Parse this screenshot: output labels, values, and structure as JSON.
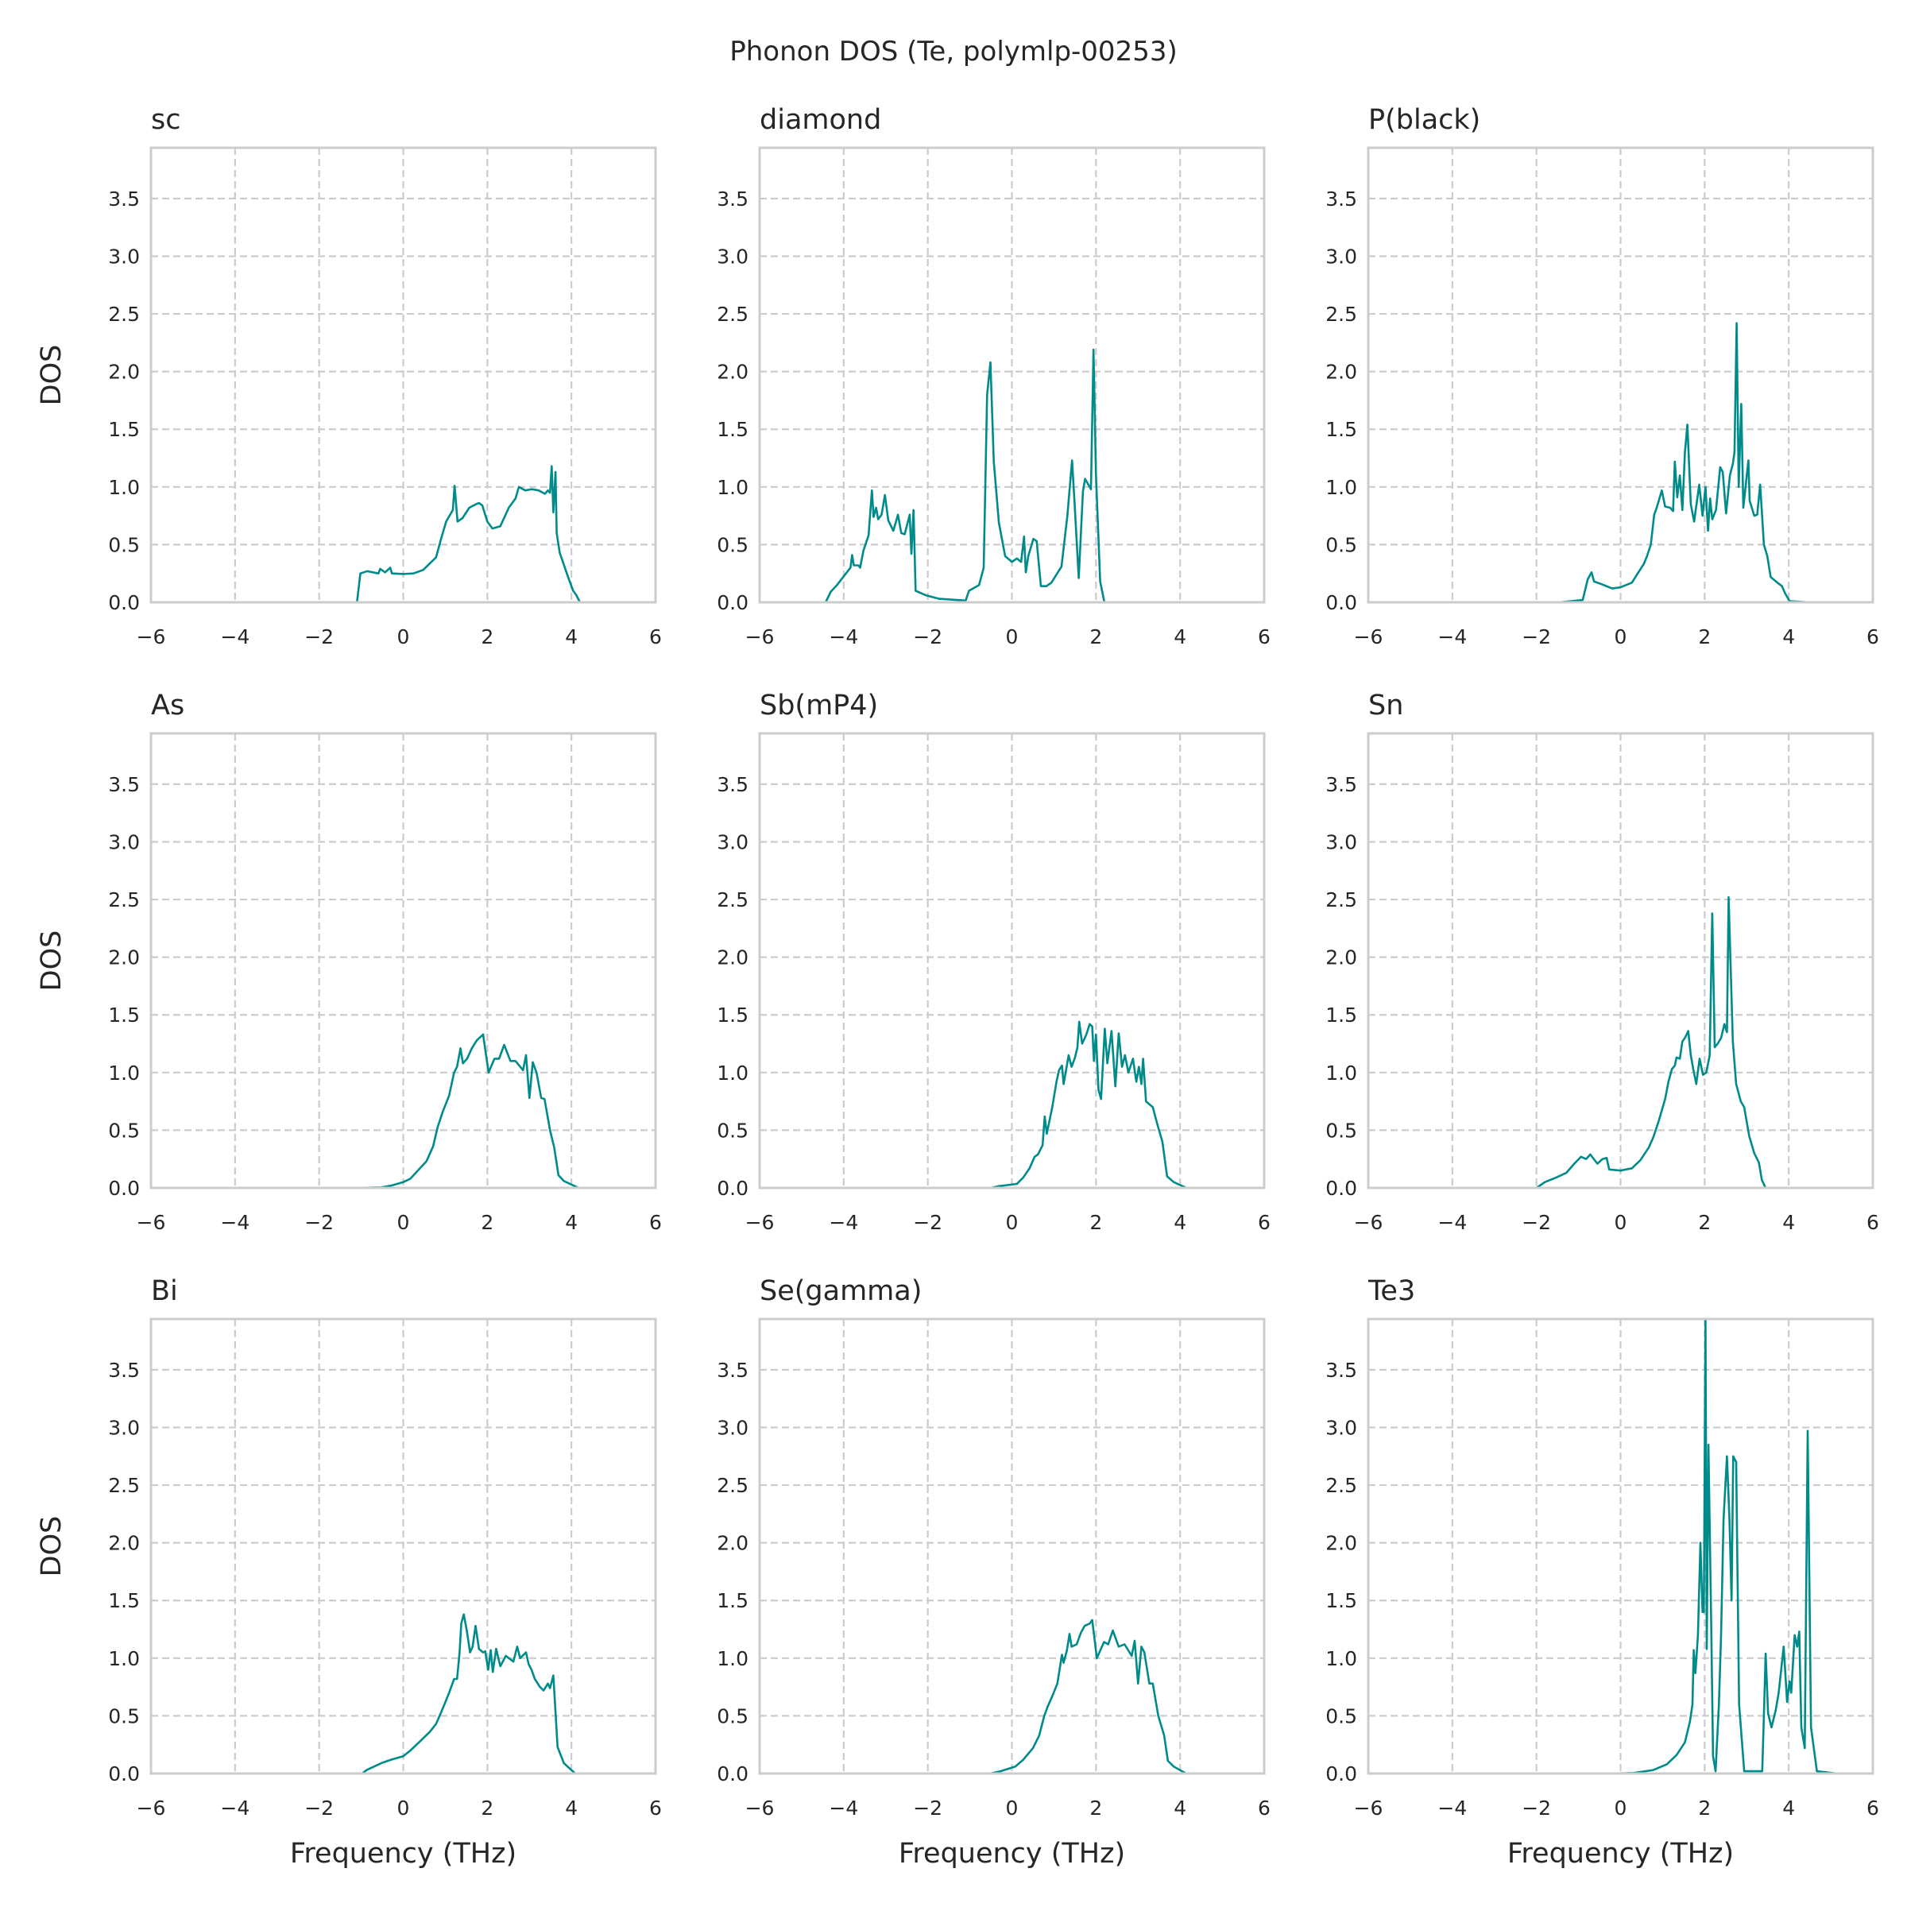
{
  "chart_data": {
    "type": "line",
    "title": "Phonon DOS (Te, polymlp-00253)",
    "xlabel": "Frequency (THz)",
    "ylabel": "DOS",
    "xlim": [
      -6,
      6
    ],
    "ylim": [
      0,
      3.94
    ],
    "xticks": [
      "−6",
      "−4",
      "−2",
      "0",
      "2",
      "4",
      "6"
    ],
    "xtick_values": [
      -6,
      -4,
      -2,
      0,
      2,
      4,
      6
    ],
    "yticks": [
      "0.0",
      "0.5",
      "1.0",
      "1.5",
      "2.0",
      "2.5",
      "3.0",
      "3.5"
    ],
    "ytick_values": [
      0,
      0.5,
      1.0,
      1.5,
      2.0,
      2.5,
      3.0,
      3.5
    ],
    "grid": true,
    "line_color": "#008b8b",
    "layout": "3x3 grid",
    "panels": [
      {
        "name": "sc",
        "x": [
          -1.65,
          -1.1,
          -1.02,
          -0.86,
          -0.59,
          -0.55,
          -0.43,
          -0.31,
          -0.27,
          0,
          0.24,
          0.47,
          0.78,
          0.9,
          1.02,
          1.18,
          1.22,
          1.29,
          1.41,
          1.57,
          1.73,
          1.8,
          1.88,
          2.0,
          2.12,
          2.31,
          2.51,
          2.67,
          2.75,
          2.9,
          3.06,
          3.22,
          3.37,
          3.44,
          3.49,
          3.53,
          3.57,
          3.62,
          3.65,
          3.72,
          3.92,
          4.04,
          4.12,
          4.2,
          4.71
        ],
        "y": [
          0,
          0,
          0.25,
          0.27,
          0.25,
          0.29,
          0.26,
          0.3,
          0.25,
          0.245,
          0.25,
          0.28,
          0.39,
          0.55,
          0.7,
          0.8,
          1.01,
          0.7,
          0.73,
          0.82,
          0.85,
          0.86,
          0.84,
          0.7,
          0.64,
          0.66,
          0.82,
          0.9,
          1.0,
          0.97,
          0.98,
          0.97,
          0.94,
          0.97,
          0.95,
          1.18,
          0.78,
          1.13,
          0.6,
          0.43,
          0.22,
          0.1,
          0.06,
          0,
          0
        ]
      },
      {
        "name": "diamond",
        "x": [
          -5.06,
          -4.43,
          -4.31,
          -4.16,
          -3.84,
          -3.8,
          -3.76,
          -3.65,
          -3.61,
          -3.53,
          -3.41,
          -3.33,
          -3.29,
          -3.23,
          -3.18,
          -3.1,
          -3.02,
          -2.94,
          -2.82,
          -2.71,
          -2.63,
          -2.55,
          -2.43,
          -2.39,
          -2.34,
          -2.29,
          -2.04,
          -1.73,
          -1.1,
          -1.02,
          -0.78,
          -0.67,
          -0.59,
          -0.51,
          -0.43,
          -0.31,
          -0.16,
          0,
          0.12,
          0.22,
          0.29,
          0.33,
          0.39,
          0.51,
          0.59,
          0.69,
          0.82,
          0.94,
          1.18,
          1.32,
          1.43,
          1.49,
          1.59,
          1.69,
          1.74,
          1.88,
          1.94,
          2.0,
          2.1,
          2.2,
          2.82
        ],
        "y": [
          0,
          0,
          0.09,
          0.15,
          0.3,
          0.41,
          0.32,
          0.32,
          0.3,
          0.45,
          0.58,
          0.97,
          0.74,
          0.82,
          0.72,
          0.76,
          0.93,
          0.71,
          0.62,
          0.76,
          0.6,
          0.59,
          0.76,
          0.42,
          0.8,
          0.1,
          0.06,
          0.03,
          0.015,
          0.1,
          0.15,
          0.3,
          1.8,
          2.08,
          1.22,
          0.69,
          0.4,
          0.35,
          0.38,
          0.35,
          0.57,
          0.26,
          0.4,
          0.55,
          0.53,
          0.14,
          0.14,
          0.17,
          0.31,
          0.75,
          1.23,
          0.87,
          0.21,
          0.96,
          1.07,
          0.98,
          2.19,
          1.1,
          0.18,
          0,
          0
        ]
      },
      {
        "name": "P(black)",
        "x": [
          -1.45,
          -0.9,
          -0.78,
          -0.69,
          -0.63,
          -0.47,
          -0.2,
          0,
          0.27,
          0.39,
          0.55,
          0.63,
          0.72,
          0.8,
          0.86,
          0.98,
          1.06,
          1.18,
          1.25,
          1.29,
          1.35,
          1.41,
          1.47,
          1.53,
          1.59,
          1.67,
          1.75,
          1.87,
          1.95,
          2.02,
          2.08,
          2.13,
          2.18,
          2.27,
          2.37,
          2.43,
          2.51,
          2.6,
          2.67,
          2.71,
          2.76,
          2.81,
          2.87,
          2.92,
          3.04,
          3.07,
          3.18,
          3.25,
          3.32,
          3.41,
          3.49,
          3.57,
          3.73,
          3.84,
          3.91,
          4.02,
          4.51
        ],
        "y": [
          0,
          0.02,
          0.2,
          0.26,
          0.18,
          0.16,
          0.12,
          0.13,
          0.17,
          0.24,
          0.33,
          0.4,
          0.5,
          0.76,
          0.82,
          0.97,
          0.83,
          0.82,
          0.79,
          1.22,
          0.91,
          1.1,
          0.8,
          1.3,
          1.54,
          0.85,
          0.7,
          1.02,
          0.75,
          1.0,
          0.62,
          0.9,
          0.72,
          0.8,
          1.17,
          1.13,
          0.77,
          1.1,
          1.2,
          1.3,
          2.42,
          1.0,
          1.72,
          0.82,
          1.23,
          0.88,
          0.75,
          0.76,
          1.02,
          0.5,
          0.4,
          0.22,
          0.17,
          0.14,
          0.08,
          0.01,
          0
        ]
      },
      {
        "name": "As",
        "x": [
          -1.1,
          -0.52,
          -0.29,
          0,
          0.17,
          0.32,
          0.55,
          0.71,
          0.82,
          0.94,
          1.09,
          1.21,
          1.28,
          1.36,
          1.42,
          1.52,
          1.63,
          1.75,
          1.9,
          2.03,
          2.17,
          2.28,
          2.4,
          2.55,
          2.67,
          2.85,
          2.92,
          3.0,
          3.08,
          3.17,
          3.28,
          3.36,
          3.49,
          3.59,
          3.69,
          3.82,
          4.17,
          4.63
        ],
        "y": [
          0,
          0.005,
          0.02,
          0.05,
          0.08,
          0.14,
          0.23,
          0.36,
          0.53,
          0.66,
          0.8,
          1.0,
          1.05,
          1.21,
          1.08,
          1.12,
          1.21,
          1.28,
          1.33,
          1.0,
          1.12,
          1.12,
          1.24,
          1.1,
          1.1,
          1.02,
          1.15,
          0.78,
          1.09,
          1.0,
          0.78,
          0.77,
          0.5,
          0.35,
          0.11,
          0.06,
          0,
          0
        ]
      },
      {
        "name": "Sb(mP4)",
        "x": [
          -0.96,
          -0.5,
          -0.31,
          0.12,
          0.27,
          0.42,
          0.54,
          0.62,
          0.73,
          0.78,
          0.83,
          0.96,
          1.06,
          1.12,
          1.19,
          1.23,
          1.35,
          1.42,
          1.5,
          1.56,
          1.6,
          1.67,
          1.77,
          1.85,
          1.91,
          1.95,
          2.0,
          2.06,
          2.12,
          2.21,
          2.27,
          2.37,
          2.46,
          2.54,
          2.62,
          2.69,
          2.77,
          2.88,
          2.96,
          3.02,
          3.08,
          3.12,
          3.19,
          3.35,
          3.46,
          3.58,
          3.69,
          3.85,
          4.15,
          4.62
        ],
        "y": [
          0,
          0,
          0.015,
          0.035,
          0.09,
          0.17,
          0.27,
          0.29,
          0.37,
          0.62,
          0.47,
          0.7,
          0.92,
          1.02,
          1.06,
          0.9,
          1.15,
          1.05,
          1.13,
          1.22,
          1.44,
          1.25,
          1.33,
          1.42,
          1.4,
          1.1,
          1.33,
          0.85,
          0.77,
          1.38,
          1.08,
          1.36,
          0.88,
          1.34,
          1.05,
          1.15,
          1.0,
          1.12,
          0.92,
          1.05,
          0.9,
          1.12,
          0.75,
          0.7,
          0.55,
          0.4,
          0.1,
          0.05,
          0,
          0
        ]
      },
      {
        "name": "Sn",
        "x": [
          -2.55,
          -2.0,
          -1.8,
          -1.53,
          -1.29,
          -1.1,
          -0.94,
          -0.82,
          -0.72,
          -0.55,
          -0.43,
          -0.33,
          -0.27,
          0,
          0.27,
          0.47,
          0.67,
          0.78,
          0.9,
          1.06,
          1.14,
          1.22,
          1.29,
          1.33,
          1.41,
          1.47,
          1.53,
          1.61,
          1.67,
          1.73,
          1.8,
          1.88,
          1.96,
          2.04,
          2.12,
          2.18,
          2.24,
          2.31,
          2.39,
          2.47,
          2.53,
          2.57,
          2.67,
          2.75,
          2.86,
          2.94,
          3.06,
          3.18,
          3.29,
          3.36,
          3.45,
          4.0
        ],
        "y": [
          0,
          0,
          0.05,
          0.09,
          0.13,
          0.21,
          0.27,
          0.25,
          0.29,
          0.21,
          0.25,
          0.26,
          0.16,
          0.15,
          0.17,
          0.24,
          0.35,
          0.44,
          0.57,
          0.77,
          0.92,
          1.03,
          1.06,
          1.13,
          1.12,
          1.27,
          1.3,
          1.36,
          1.15,
          1.03,
          0.9,
          1.12,
          0.98,
          1.0,
          1.15,
          2.38,
          1.22,
          1.25,
          1.3,
          1.42,
          1.35,
          2.52,
          1.27,
          0.9,
          0.75,
          0.7,
          0.45,
          0.3,
          0.22,
          0.07,
          0,
          0
        ]
      },
      {
        "name": "Bi",
        "x": [
          -1.56,
          -0.98,
          -0.87,
          -0.52,
          -0.29,
          0,
          0.17,
          0.4,
          0.63,
          0.78,
          0.9,
          0.98,
          1.09,
          1.21,
          1.28,
          1.34,
          1.38,
          1.44,
          1.52,
          1.59,
          1.65,
          1.72,
          1.8,
          1.9,
          1.95,
          2.02,
          2.08,
          2.13,
          2.21,
          2.31,
          2.44,
          2.62,
          2.71,
          2.78,
          2.92,
          2.98,
          3.05,
          3.13,
          3.25,
          3.34,
          3.44,
          3.49,
          3.57,
          3.67,
          3.82,
          4.09,
          4.67
        ],
        "y": [
          0,
          0,
          0.03,
          0.09,
          0.12,
          0.15,
          0.2,
          0.28,
          0.36,
          0.43,
          0.53,
          0.6,
          0.7,
          0.82,
          0.82,
          1.05,
          1.3,
          1.38,
          1.22,
          1.05,
          1.1,
          1.28,
          1.08,
          1.05,
          1.06,
          0.9,
          1.07,
          0.88,
          1.08,
          0.93,
          1.02,
          0.97,
          1.1,
          1.0,
          1.05,
          0.95,
          0.9,
          0.82,
          0.75,
          0.72,
          0.78,
          0.74,
          0.85,
          0.23,
          0.09,
          0,
          0
        ]
      },
      {
        "name": "Se(gamma)",
        "x": [
          -1.12,
          -0.52,
          -0.27,
          0.08,
          0.27,
          0.5,
          0.65,
          0.77,
          0.85,
          0.96,
          1.08,
          1.19,
          1.23,
          1.31,
          1.37,
          1.42,
          1.54,
          1.64,
          1.73,
          1.85,
          1.91,
          2.02,
          2.19,
          2.29,
          2.4,
          2.54,
          2.68,
          2.85,
          2.92,
          3.0,
          3.08,
          3.15,
          3.27,
          3.35,
          3.48,
          3.62,
          3.71,
          3.85,
          4.14,
          4.65
        ],
        "y": [
          0,
          0,
          0.02,
          0.06,
          0.12,
          0.22,
          0.33,
          0.5,
          0.58,
          0.67,
          0.78,
          1.03,
          0.96,
          1.07,
          1.21,
          1.1,
          1.12,
          1.22,
          1.28,
          1.3,
          1.33,
          1.0,
          1.14,
          1.12,
          1.24,
          1.1,
          1.12,
          1.02,
          1.15,
          0.78,
          1.1,
          1.05,
          0.78,
          0.78,
          0.5,
          0.33,
          0.11,
          0.06,
          0,
          0
        ]
      },
      {
        "name": "Te3",
        "x": [
          -0.16,
          0.31,
          0.78,
          1.1,
          1.33,
          1.53,
          1.65,
          1.71,
          1.74,
          1.78,
          1.84,
          1.9,
          1.95,
          1.98,
          2.02,
          2.05,
          2.09,
          2.16,
          2.2,
          2.26,
          2.34,
          2.39,
          2.45,
          2.53,
          2.59,
          2.64,
          2.68,
          2.75,
          2.82,
          2.94,
          3.37,
          3.41,
          3.45,
          3.51,
          3.59,
          3.69,
          3.76,
          3.88,
          3.96,
          4.02,
          4.06,
          4.14,
          4.2,
          4.25,
          4.3,
          4.38,
          4.45,
          4.53,
          4.67,
          5.14
        ],
        "y": [
          0,
          0.005,
          0.03,
          0.08,
          0.16,
          0.27,
          0.45,
          0.6,
          1.07,
          0.87,
          1.2,
          2.0,
          1.4,
          1.4,
          3.94,
          1.08,
          2.85,
          1.2,
          0.15,
          0.02,
          0.6,
          1.2,
          2.2,
          2.75,
          2.2,
          1.5,
          2.75,
          2.7,
          0.6,
          0.02,
          0.02,
          0.5,
          1.04,
          0.52,
          0.4,
          0.55,
          0.7,
          1.1,
          0.62,
          0.8,
          0.7,
          1.2,
          1.1,
          1.23,
          0.4,
          0.22,
          2.97,
          0.4,
          0.02,
          0
        ]
      }
    ]
  }
}
